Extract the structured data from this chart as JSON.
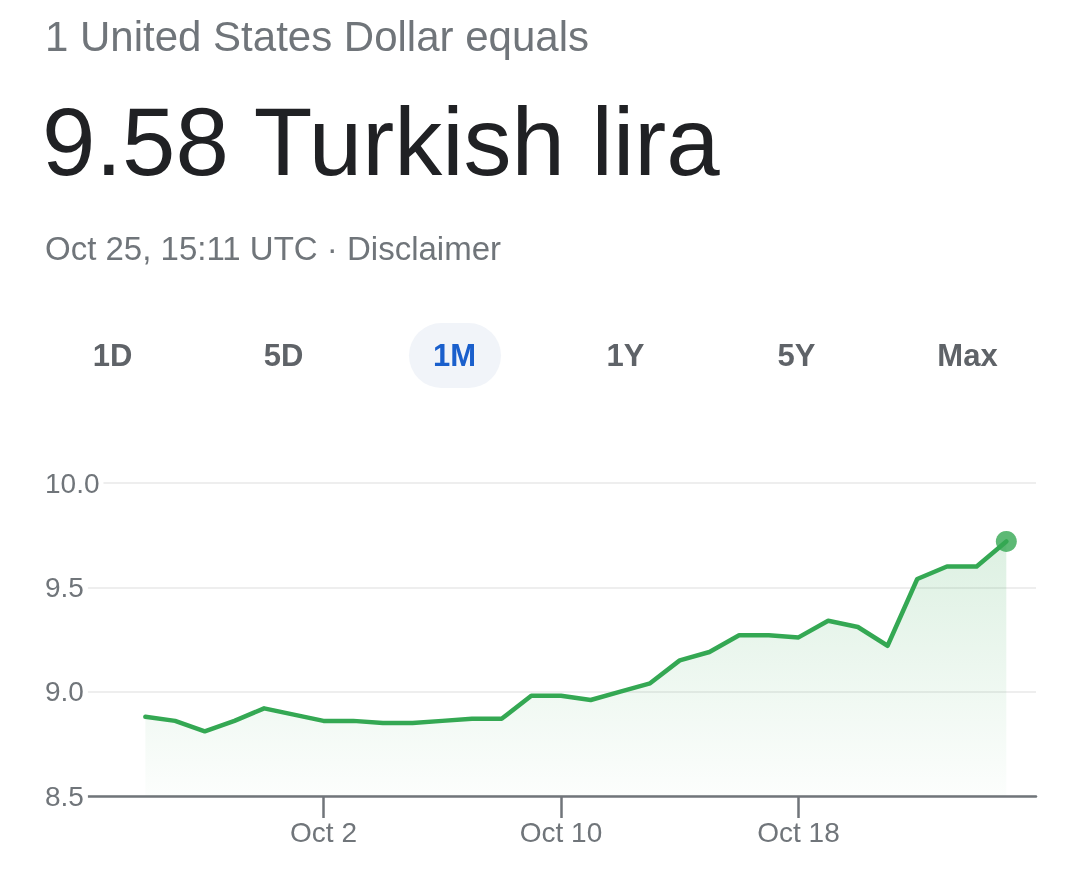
{
  "chart_data": {
    "type": "area",
    "title": "9.58 Turkish lira",
    "subtitle": "1 United States Dollar equals",
    "annotations": [
      "Oct 25, 15:11 UTC · Disclaimer",
      "1D",
      "5D",
      "1M",
      "1Y",
      "5Y",
      "Max"
    ],
    "x": [
      "--09-26",
      "--09-27",
      "--09-28",
      "--09-29",
      "--09-30",
      "--10-01",
      "--10-02",
      "--10-03",
      "--10-04",
      "--10-05",
      "--10-06",
      "--10-07",
      "--10-08",
      "--10-09",
      "--10-10",
      "--10-11",
      "--10-12",
      "--10-13",
      "--10-14",
      "--10-15",
      "--10-16",
      "--10-17",
      "--10-18",
      "--10-19",
      "--10-20",
      "--10-21",
      "--10-22",
      "--10-23",
      "--10-24",
      "--10-25"
    ],
    "series": [
      {
        "color": "#34a853",
        "values": [
          8.88,
          8.86,
          8.81,
          8.86,
          8.92,
          8.89,
          8.86,
          8.86,
          8.85,
          8.85,
          8.86,
          8.87,
          8.87,
          8.98,
          8.98,
          8.96,
          9.0,
          9.04,
          9.15,
          9.19,
          9.27,
          9.27,
          9.26,
          9.34,
          9.31,
          9.22,
          9.54,
          9.6,
          9.6,
          9.72
        ]
      },
      {
        "type": "scatter",
        "x": [
          "--10-25"
        ],
        "values": [
          9.72
        ],
        "color": "#34a853"
      }
    ],
    "xlim": [
      "--09-24",
      "--10-26"
    ],
    "xticks": [
      {
        "value": "--10-02",
        "label": "Oct 2"
      },
      {
        "value": "--10-10",
        "label": "Oct 10"
      },
      {
        "value": "--10-18",
        "label": "Oct 18"
      }
    ],
    "ylim": [
      8.5,
      10
    ],
    "yticks": [
      8.5,
      {
        "value": 9,
        "label": "9.0"
      },
      9.5,
      {
        "value": 10,
        "label": "10.0"
      }
    ],
    "grid": "y"
  }
}
